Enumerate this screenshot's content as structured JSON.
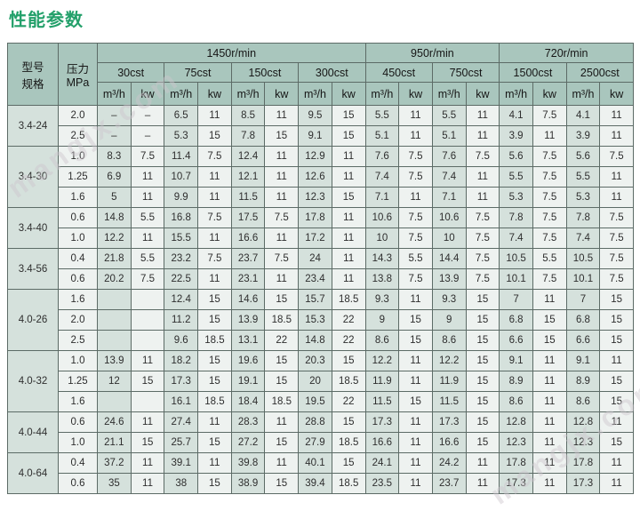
{
  "title": "性能参数",
  "title_color": "#23a06a",
  "watermark": {
    "text": "mangjx.com"
  },
  "table": {
    "corner": {
      "model_label": "型号\n规格",
      "pressure_label": "压力\nMPa"
    },
    "speed_groups": [
      {
        "label": "1450r/min",
        "cst": [
          "30cst",
          "75cst",
          "150cst",
          "300cst"
        ]
      },
      {
        "label": "950r/min",
        "cst": [
          "450cst",
          "750cst"
        ]
      },
      {
        "label": "720r/min",
        "cst": [
          "1500cst",
          "2500cst"
        ]
      }
    ],
    "unit_flow": "m³/h",
    "unit_power": "kw",
    "groups": [
      {
        "model": "3.4-24",
        "rows": [
          {
            "pressure": "2.0",
            "values": [
              "–",
              "–",
              "6.5",
              "11",
              "8.5",
              "11",
              "9.5",
              "15",
              "5.5",
              "11",
              "5.5",
              "11",
              "4.1",
              "7.5",
              "4.1",
              "11"
            ]
          },
          {
            "pressure": "2.5",
            "values": [
              "–",
              "–",
              "5.3",
              "15",
              "7.8",
              "15",
              "9.1",
              "15",
              "5.1",
              "11",
              "5.1",
              "11",
              "3.9",
              "11",
              "3.9",
              "11"
            ]
          }
        ]
      },
      {
        "model": "3.4-30",
        "rows": [
          {
            "pressure": "1.0",
            "values": [
              "8.3",
              "7.5",
              "11.4",
              "7.5",
              "12.4",
              "11",
              "12.9",
              "11",
              "7.6",
              "7.5",
              "7.6",
              "7.5",
              "5.6",
              "7.5",
              "5.6",
              "7.5"
            ]
          },
          {
            "pressure": "1.25",
            "values": [
              "6.9",
              "11",
              "10.7",
              "11",
              "12.1",
              "11",
              "12.6",
              "11",
              "7.4",
              "7.5",
              "7.4",
              "11",
              "5.5",
              "7.5",
              "5.5",
              "11"
            ]
          },
          {
            "pressure": "1.6",
            "values": [
              "5",
              "11",
              "9.9",
              "11",
              "11.5",
              "11",
              "12.3",
              "15",
              "7.1",
              "11",
              "7.1",
              "11",
              "5.3",
              "7.5",
              "5.3",
              "11"
            ]
          }
        ]
      },
      {
        "model": "3.4-40",
        "rows": [
          {
            "pressure": "0.6",
            "values": [
              "14.8",
              "5.5",
              "16.8",
              "7.5",
              "17.5",
              "7.5",
              "17.8",
              "11",
              "10.6",
              "7.5",
              "10.6",
              "7.5",
              "7.8",
              "7.5",
              "7.8",
              "7.5"
            ]
          },
          {
            "pressure": "1.0",
            "values": [
              "12.2",
              "11",
              "15.5",
              "11",
              "16.6",
              "11",
              "17.2",
              "11",
              "10",
              "7.5",
              "10",
              "7.5",
              "7.4",
              "7.5",
              "7.4",
              "7.5"
            ]
          }
        ]
      },
      {
        "model": "3.4-56",
        "rows": [
          {
            "pressure": "0.4",
            "values": [
              "21.8",
              "5.5",
              "23.2",
              "7.5",
              "23.7",
              "7.5",
              "24",
              "11",
              "14.3",
              "5.5",
              "14.4",
              "7.5",
              "10.5",
              "5.5",
              "10.5",
              "7.5"
            ]
          },
          {
            "pressure": "0.6",
            "values": [
              "20.2",
              "7.5",
              "22.5",
              "11",
              "23.1",
              "11",
              "23.4",
              "11",
              "13.8",
              "7.5",
              "13.9",
              "7.5",
              "10.1",
              "7.5",
              "10.1",
              "7.5"
            ]
          }
        ]
      },
      {
        "model": "4.0-26",
        "rows": [
          {
            "pressure": "1.6",
            "values": [
              "",
              "",
              "12.4",
              "15",
              "14.6",
              "15",
              "15.7",
              "18.5",
              "9.3",
              "11",
              "9.3",
              "15",
              "7",
              "11",
              "7",
              "15"
            ]
          },
          {
            "pressure": "2.0",
            "values": [
              "",
              "",
              "11.2",
              "15",
              "13.9",
              "18.5",
              "15.3",
              "22",
              "9",
              "15",
              "9",
              "15",
              "6.8",
              "15",
              "6.8",
              "15"
            ]
          },
          {
            "pressure": "2.5",
            "values": [
              "",
              "",
              "9.6",
              "18.5",
              "13.1",
              "22",
              "14.8",
              "22",
              "8.6",
              "15",
              "8.6",
              "15",
              "6.6",
              "15",
              "6.6",
              "15"
            ]
          }
        ]
      },
      {
        "model": "4.0-32",
        "rows": [
          {
            "pressure": "1.0",
            "values": [
              "13.9",
              "11",
              "18.2",
              "15",
              "19.6",
              "15",
              "20.3",
              "15",
              "12.2",
              "11",
              "12.2",
              "15",
              "9.1",
              "11",
              "9.1",
              "11"
            ]
          },
          {
            "pressure": "1.25",
            "values": [
              "12",
              "15",
              "17.3",
              "15",
              "19.1",
              "15",
              "20",
              "18.5",
              "11.9",
              "11",
              "11.9",
              "15",
              "8.9",
              "11",
              "8.9",
              "15"
            ]
          },
          {
            "pressure": "1.6",
            "values": [
              "",
              "",
              "16.1",
              "18.5",
              "18.4",
              "18.5",
              "19.5",
              "22",
              "11.5",
              "15",
              "11.5",
              "15",
              "8.6",
              "11",
              "8.6",
              "15"
            ]
          }
        ]
      },
      {
        "model": "4.0-44",
        "rows": [
          {
            "pressure": "0.6",
            "values": [
              "24.6",
              "11",
              "27.4",
              "11",
              "28.3",
              "11",
              "28.8",
              "15",
              "17.3",
              "11",
              "17.3",
              "15",
              "12.8",
              "11",
              "12.8",
              "11"
            ]
          },
          {
            "pressure": "1.0",
            "values": [
              "21.1",
              "15",
              "25.7",
              "15",
              "27.2",
              "15",
              "27.9",
              "18.5",
              "16.6",
              "11",
              "16.6",
              "15",
              "12.3",
              "11",
              "12.3",
              "15"
            ]
          }
        ]
      },
      {
        "model": "4.0-64",
        "rows": [
          {
            "pressure": "0.4",
            "values": [
              "37.2",
              "11",
              "39.1",
              "11",
              "39.8",
              "11",
              "40.1",
              "15",
              "24.1",
              "11",
              "24.2",
              "11",
              "17.8",
              "11",
              "17.8",
              "11"
            ]
          },
          {
            "pressure": "0.6",
            "values": [
              "35",
              "11",
              "38",
              "15",
              "38.9",
              "15",
              "39.4",
              "18.5",
              "23.5",
              "11",
              "23.7",
              "11",
              "17.3",
              "11",
              "17.3",
              "11"
            ]
          }
        ]
      }
    ]
  },
  "colors": {
    "accent": "#23a06a",
    "header_bg": "#a9c6bd",
    "column_dark": "#d5e1dc",
    "column_light": "#eef2f0",
    "border": "#5c6b66"
  }
}
